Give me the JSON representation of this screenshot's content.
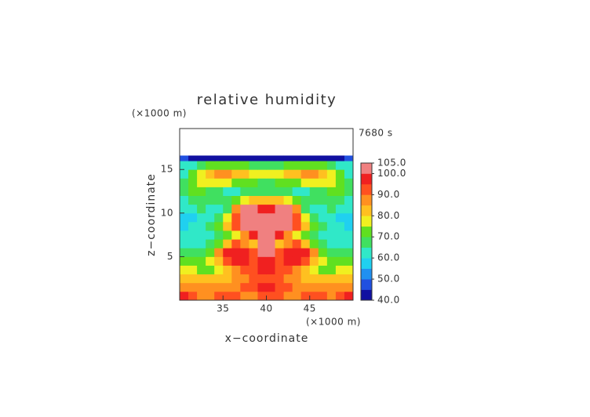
{
  "chart_data": {
    "type": "heatmap",
    "title": "relative humidity",
    "time_label": "7680 s",
    "x_label": "x−coordinate",
    "y_label": "z−coordinate",
    "x_unit": "(×1000 m)",
    "y_unit": "(×1000 m)",
    "xlim": [
      30,
      50
    ],
    "ylim": [
      0,
      19.7
    ],
    "xticks": [
      35,
      40,
      45
    ],
    "yticks": [
      5,
      10,
      15
    ],
    "x_edges": [
      30,
      31,
      32,
      33,
      34,
      35,
      36,
      37,
      38,
      39,
      40,
      41,
      42,
      43,
      44,
      45,
      46,
      47,
      48,
      49,
      50
    ],
    "y_edges": [
      0,
      1,
      2,
      3,
      4,
      5,
      6,
      7,
      8,
      9,
      10,
      11,
      12,
      13,
      14,
      15,
      16,
      16.6
    ],
    "values": [
      [
        95,
        90,
        88,
        88,
        90,
        92,
        90,
        88,
        88,
        90,
        94,
        90,
        88,
        88,
        90,
        92,
        90,
        88,
        90,
        95
      ],
      [
        88,
        86,
        85,
        85,
        86,
        88,
        88,
        90,
        94,
        96,
        96,
        94,
        90,
        88,
        88,
        86,
        85,
        85,
        86,
        88
      ],
      [
        82,
        82,
        80,
        80,
        82,
        84,
        86,
        88,
        90,
        90,
        90,
        90,
        88,
        86,
        84,
        82,
        80,
        80,
        82,
        82
      ],
      [
        76,
        76,
        74,
        74,
        78,
        82,
        86,
        90,
        94,
        97,
        97,
        94,
        90,
        86,
        82,
        78,
        74,
        74,
        76,
        76
      ],
      [
        72,
        70,
        70,
        76,
        84,
        92,
        97,
        96,
        92,
        98,
        98,
        92,
        96,
        97,
        92,
        84,
        76,
        70,
        70,
        72
      ],
      [
        68,
        66,
        68,
        74,
        86,
        96,
        98,
        96,
        90,
        100,
        100,
        90,
        96,
        98,
        96,
        86,
        74,
        68,
        66,
        68
      ],
      [
        62,
        62,
        64,
        68,
        74,
        84,
        92,
        88,
        84,
        100,
        100,
        84,
        88,
        92,
        84,
        74,
        68,
        64,
        62,
        62
      ],
      [
        60,
        60,
        62,
        64,
        68,
        72,
        78,
        86,
        96,
        102,
        102,
        96,
        86,
        78,
        72,
        68,
        64,
        62,
        60,
        60
      ],
      [
        58,
        60,
        62,
        66,
        72,
        80,
        92,
        102,
        103,
        102,
        102,
        103,
        102,
        92,
        80,
        72,
        66,
        62,
        60,
        58
      ],
      [
        58,
        58,
        60,
        64,
        68,
        76,
        94,
        102,
        103,
        103,
        103,
        103,
        102,
        94,
        76,
        68,
        64,
        60,
        58,
        58
      ],
      [
        60,
        62,
        66,
        64,
        62,
        66,
        88,
        100,
        102,
        96,
        96,
        102,
        100,
        88,
        66,
        62,
        64,
        66,
        62,
        60
      ],
      [
        64,
        66,
        68,
        68,
        66,
        66,
        70,
        76,
        80,
        82,
        82,
        80,
        76,
        70,
        66,
        66,
        68,
        68,
        66,
        64
      ],
      [
        68,
        70,
        70,
        68,
        66,
        64,
        64,
        66,
        68,
        68,
        68,
        68,
        66,
        64,
        64,
        66,
        68,
        70,
        70,
        68
      ],
      [
        66,
        72,
        76,
        78,
        78,
        76,
        72,
        70,
        70,
        68,
        68,
        70,
        70,
        72,
        76,
        78,
        78,
        76,
        72,
        66
      ],
      [
        64,
        70,
        78,
        84,
        86,
        86,
        84,
        80,
        78,
        76,
        76,
        78,
        80,
        84,
        86,
        86,
        84,
        78,
        70,
        64
      ],
      [
        62,
        64,
        68,
        72,
        74,
        74,
        72,
        70,
        68,
        66,
        66,
        68,
        70,
        72,
        74,
        74,
        72,
        68,
        64,
        62
      ],
      [
        45,
        44,
        44,
        44,
        44,
        44,
        44,
        43,
        43,
        42,
        42,
        43,
        43,
        44,
        44,
        44,
        44,
        44,
        44,
        45
      ]
    ],
    "zlim": [
      40,
      105
    ],
    "colorscale": [
      "#1010a0",
      "#2050e0",
      "#2090f0",
      "#20d0f0",
      "#30e8c8",
      "#40e060",
      "#60e020",
      "#f0f020",
      "#ffc020",
      "#ff9020",
      "#ff5020",
      "#f02020",
      "#f08080"
    ],
    "zticks": [
      {
        "value": 40,
        "label": "40.0"
      },
      {
        "value": 50,
        "label": "50.0"
      },
      {
        "value": 60,
        "label": "60.0"
      },
      {
        "value": 70,
        "label": "70.0"
      },
      {
        "value": 80,
        "label": "80.0"
      },
      {
        "value": 90,
        "label": "90.0"
      },
      {
        "value": 100,
        "label": "100.0"
      },
      {
        "value": 105,
        "label": "105.0"
      }
    ]
  }
}
